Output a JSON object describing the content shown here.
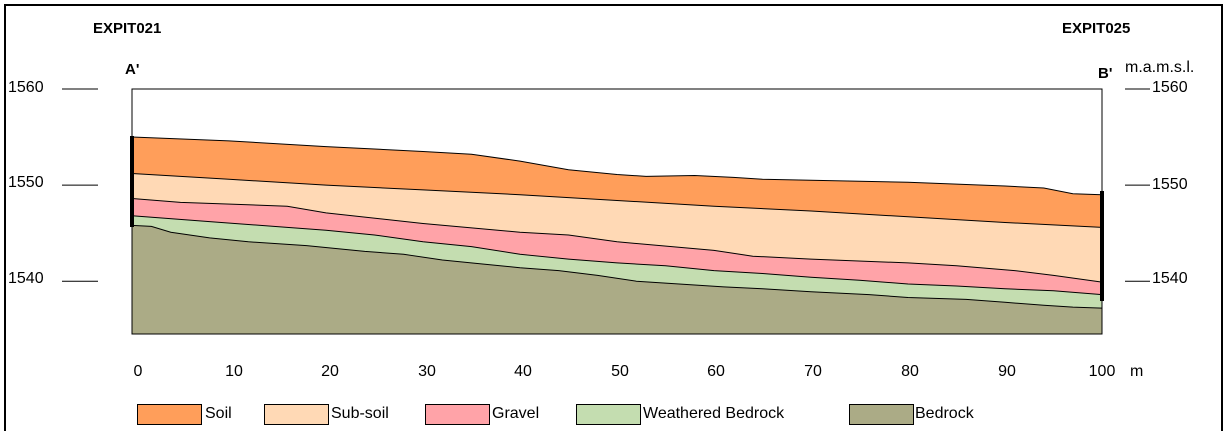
{
  "labels": {
    "left_borehole": "EXPIT021",
    "right_borehole": "EXPIT025",
    "point_a": "A'",
    "point_b": "B'",
    "y_unit": "m.a.m.s.l.",
    "x_unit": "m"
  },
  "colors": {
    "soil": "#FF9E5A",
    "subsoil": "#FFD9B5",
    "gravel": "#FFA3A8",
    "weathered": "#C4DDB0",
    "bedrock": "#ABAB86"
  },
  "chart_data": {
    "type": "area",
    "title": "",
    "xlabel": "m",
    "ylabel": "m.a.m.s.l.",
    "xlim": [
      0,
      100
    ],
    "ylim": [
      1534.5,
      1560
    ],
    "x_ticks": [
      "0",
      "10",
      "20",
      "30",
      "40",
      "50",
      "60",
      "70",
      "80",
      "90",
      "100"
    ],
    "y_ticks": [
      "1560",
      "1550",
      "1540"
    ],
    "legend": [
      "Soil",
      "Sub-soil",
      "Gravel",
      "Weathered Bedrock",
      "Bedrock"
    ],
    "layers": [
      {
        "name": "Soil",
        "color": "#FF9E5A",
        "top": [
          [
            0,
            1555
          ],
          [
            10,
            1554.6
          ],
          [
            20,
            1554
          ],
          [
            30,
            1553.5
          ],
          [
            35,
            1553.2
          ],
          [
            40,
            1552.5
          ],
          [
            45,
            1551.6
          ],
          [
            50,
            1551.1
          ],
          [
            53,
            1550.9
          ],
          [
            58,
            1551
          ],
          [
            62,
            1550.8
          ],
          [
            65,
            1550.6
          ],
          [
            70,
            1550.5
          ],
          [
            80,
            1550.3
          ],
          [
            90,
            1549.9
          ],
          [
            94,
            1549.7
          ],
          [
            97,
            1549.1
          ],
          [
            100,
            1549
          ]
        ]
      },
      {
        "name": "Sub-soil",
        "color": "#FFD9B5",
        "top": [
          [
            0,
            1551.2
          ],
          [
            10,
            1550.6
          ],
          [
            20,
            1550
          ],
          [
            30,
            1549.5
          ],
          [
            40,
            1549
          ],
          [
            50,
            1548.4
          ],
          [
            60,
            1547.8
          ],
          [
            70,
            1547.3
          ],
          [
            80,
            1546.7
          ],
          [
            90,
            1546.1
          ],
          [
            100,
            1545.6
          ]
        ]
      },
      {
        "name": "Gravel",
        "color": "#FFA3A8",
        "top": [
          [
            0,
            1548.6
          ],
          [
            5,
            1548.2
          ],
          [
            16,
            1547.8
          ],
          [
            20,
            1547.1
          ],
          [
            30,
            1546
          ],
          [
            40,
            1545.1
          ],
          [
            45,
            1544.8
          ],
          [
            50,
            1544.1
          ],
          [
            60,
            1543.2
          ],
          [
            64,
            1542.6
          ],
          [
            70,
            1542.3
          ],
          [
            80,
            1541.9
          ],
          [
            85,
            1541.6
          ],
          [
            91,
            1541.1
          ],
          [
            95,
            1540.6
          ],
          [
            100,
            1539.9
          ]
        ]
      },
      {
        "name": "Weathered Bedrock",
        "color": "#C4DDB0",
        "top": [
          [
            0,
            1546.8
          ],
          [
            8,
            1546.2
          ],
          [
            16,
            1545.6
          ],
          [
            20,
            1545.3
          ],
          [
            25,
            1544.8
          ],
          [
            30,
            1544.1
          ],
          [
            35,
            1543.6
          ],
          [
            40,
            1542.8
          ],
          [
            45,
            1542.3
          ],
          [
            50,
            1541.9
          ],
          [
            55,
            1541.6
          ],
          [
            60,
            1541.1
          ],
          [
            65,
            1540.8
          ],
          [
            70,
            1540.4
          ],
          [
            75,
            1540.1
          ],
          [
            80,
            1539.7
          ],
          [
            85,
            1539.5
          ],
          [
            90,
            1539.2
          ],
          [
            95,
            1539
          ],
          [
            100,
            1538.6
          ]
        ]
      },
      {
        "name": "Bedrock",
        "color": "#ABAB86",
        "top": [
          [
            0,
            1545.8
          ],
          [
            2,
            1545.7
          ],
          [
            4,
            1545.1
          ],
          [
            8,
            1544.5
          ],
          [
            12,
            1544.1
          ],
          [
            18,
            1543.7
          ],
          [
            24,
            1543.1
          ],
          [
            28,
            1542.8
          ],
          [
            32,
            1542.2
          ],
          [
            36,
            1541.8
          ],
          [
            40,
            1541.4
          ],
          [
            44,
            1541.1
          ],
          [
            48,
            1540.6
          ],
          [
            52,
            1540
          ],
          [
            55,
            1539.8
          ],
          [
            58,
            1539.6
          ],
          [
            61,
            1539.4
          ],
          [
            65,
            1539.2
          ],
          [
            70,
            1538.9
          ],
          [
            76,
            1538.6
          ],
          [
            80,
            1538.3
          ],
          [
            86,
            1538.1
          ],
          [
            90,
            1537.8
          ],
          [
            94,
            1537.5
          ],
          [
            97,
            1537.3
          ],
          [
            100,
            1537.2
          ]
        ]
      }
    ]
  }
}
